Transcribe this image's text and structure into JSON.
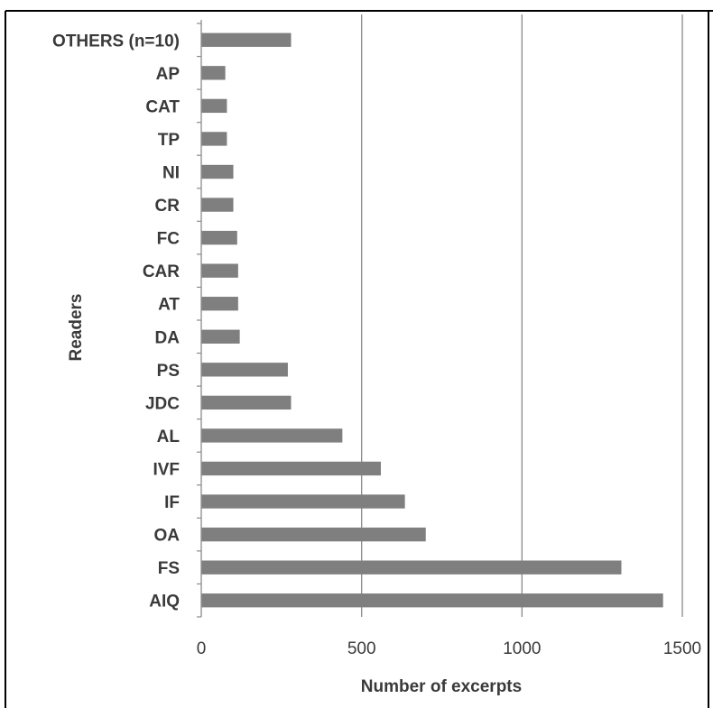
{
  "chart_data": {
    "type": "bar",
    "orientation": "horizontal",
    "categories": [
      "AIQ",
      "FS",
      "OA",
      "IF",
      "IVF",
      "AL",
      "JDC",
      "PS",
      "DA",
      "AT",
      "CAR",
      "FC",
      "CR",
      "NI",
      "TP",
      "CAT",
      "AP",
      "OTHERS (n=10)"
    ],
    "values": [
      1440,
      1310,
      700,
      635,
      560,
      440,
      280,
      270,
      120,
      115,
      115,
      112,
      100,
      100,
      80,
      80,
      75,
      280
    ],
    "title": "",
    "xlabel": "Number of excerpts",
    "ylabel": "Readers",
    "xlim": [
      0,
      1500
    ],
    "xticks": [
      0,
      500,
      1000,
      1500
    ],
    "grid": "vertical",
    "legend": "none",
    "bar_color": "#7f7f7f",
    "grid_color": "#8c8c8c"
  }
}
